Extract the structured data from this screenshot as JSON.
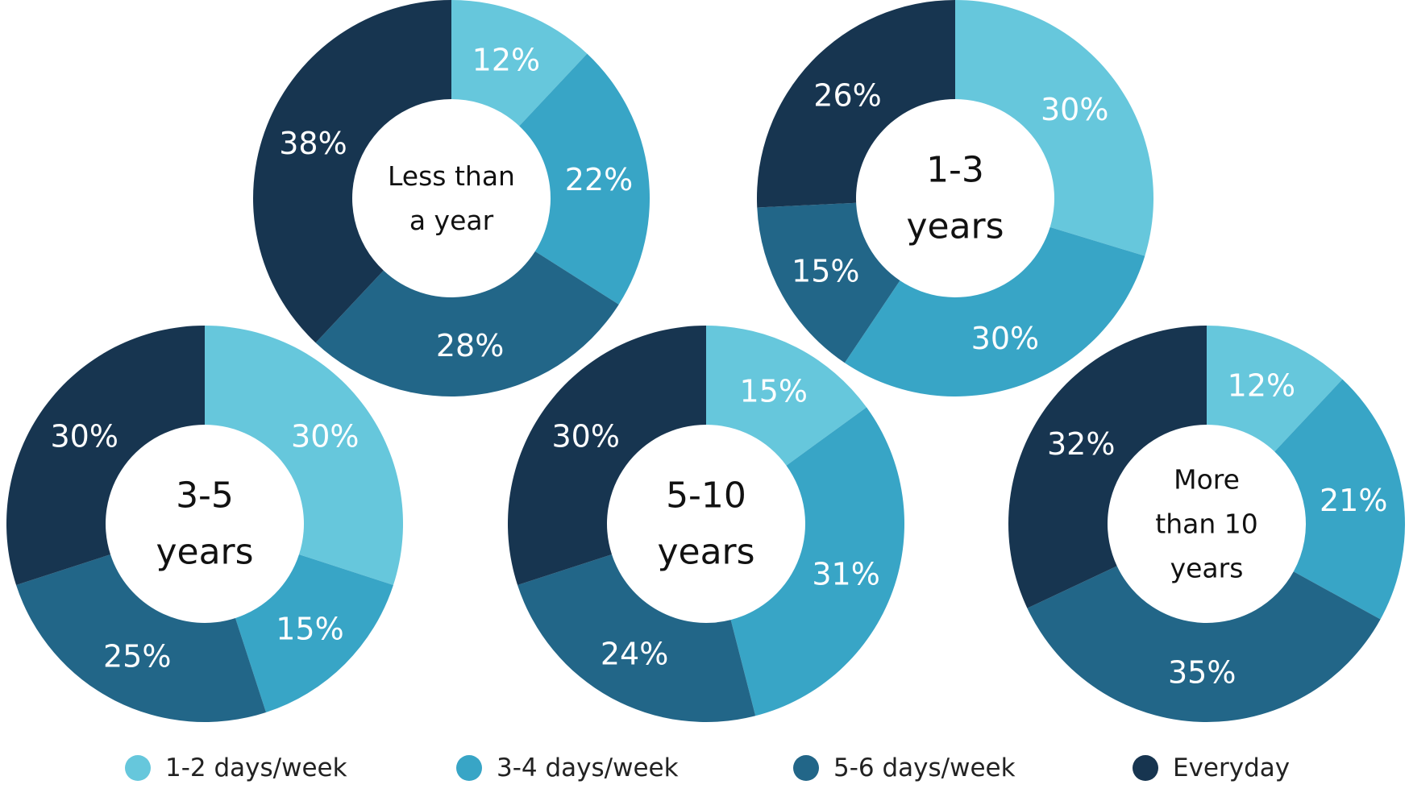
{
  "chart_data": {
    "type": "pie",
    "variant": "donut",
    "categories": [
      "1-2 days/week",
      "3-4 days/week",
      "5-6 days/week",
      "Everyday"
    ],
    "colors": [
      "#66c7dc",
      "#38a5c6",
      "#226688",
      "#173550"
    ],
    "legend_placement": "bottom",
    "charts": [
      {
        "center_label": [
          "Less than",
          "a year"
        ],
        "values": [
          12,
          22,
          28,
          38
        ],
        "labels": [
          "12%",
          "22%",
          "28%",
          "38%"
        ]
      },
      {
        "center_label": [
          "1-3",
          "years"
        ],
        "values": [
          30,
          30,
          15,
          26
        ],
        "labels": [
          "30%",
          "30%",
          "15%",
          "26%"
        ]
      },
      {
        "center_label": [
          "3-5",
          "years"
        ],
        "values": [
          30,
          15,
          25,
          30
        ],
        "labels": [
          "30%",
          "15%",
          "25%",
          "30%"
        ]
      },
      {
        "center_label": [
          "5-10",
          "years"
        ],
        "values": [
          15,
          31,
          24,
          30
        ],
        "labels": [
          "15%",
          "31%",
          "24%",
          "30%"
        ]
      },
      {
        "center_label": [
          "More",
          "than 10",
          "years"
        ],
        "values": [
          12,
          21,
          35,
          32
        ],
        "labels": [
          "12%",
          "21%",
          "35%",
          "32%"
        ]
      }
    ],
    "legend": [
      {
        "label": "1-2 days/week",
        "color": "#66c7dc"
      },
      {
        "label": "3-4 days/week",
        "color": "#38a5c6"
      },
      {
        "label": "5-6 days/week",
        "color": "#226688"
      },
      {
        "label": "Everyday",
        "color": "#173550"
      }
    ]
  }
}
